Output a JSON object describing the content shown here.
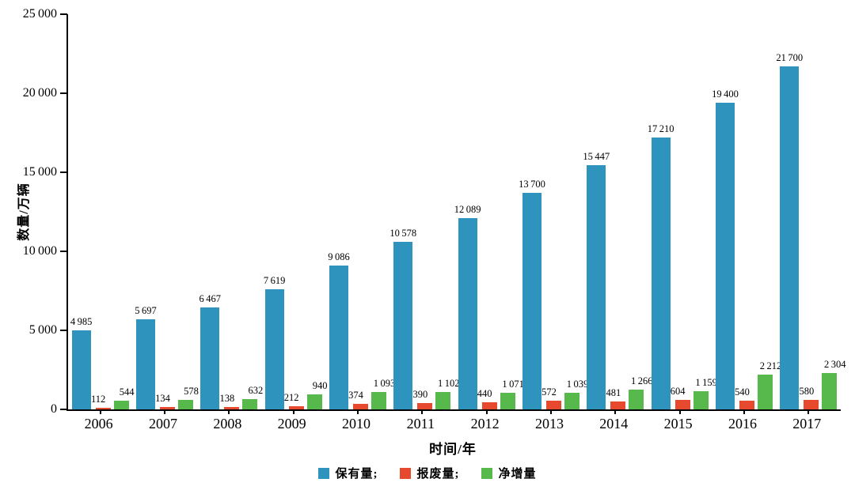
{
  "chart_data": {
    "type": "bar",
    "title": "",
    "xlabel": "时间/年",
    "ylabel": "数量/万辆",
    "ylim": [
      0,
      25000
    ],
    "yticks": [
      0,
      5000,
      10000,
      15000,
      20000,
      25000
    ],
    "grid": false,
    "legend_position": "bottom",
    "categories": [
      "2006",
      "2007",
      "2008",
      "2009",
      "2010",
      "2011",
      "2012",
      "2013",
      "2014",
      "2015",
      "2016",
      "2017"
    ],
    "series": [
      {
        "name": "保有量",
        "color": "#2e94be",
        "values": [
          4985,
          5697,
          6467,
          7619,
          9086,
          10578,
          12089,
          13700,
          15447,
          17210,
          19400,
          21700
        ]
      },
      {
        "name": "报废量",
        "color": "#e7492e",
        "values": [
          112,
          134,
          138,
          212,
          374,
          390,
          440,
          572,
          481,
          604,
          540,
          580
        ]
      },
      {
        "name": "净增量",
        "color": "#57b84c",
        "values": [
          544,
          578,
          632,
          940,
          1093,
          1102,
          1071,
          1039,
          1266,
          1159,
          2212,
          2304
        ]
      }
    ],
    "legend": [
      "保有量;",
      "报废量;",
      "净增量"
    ]
  }
}
